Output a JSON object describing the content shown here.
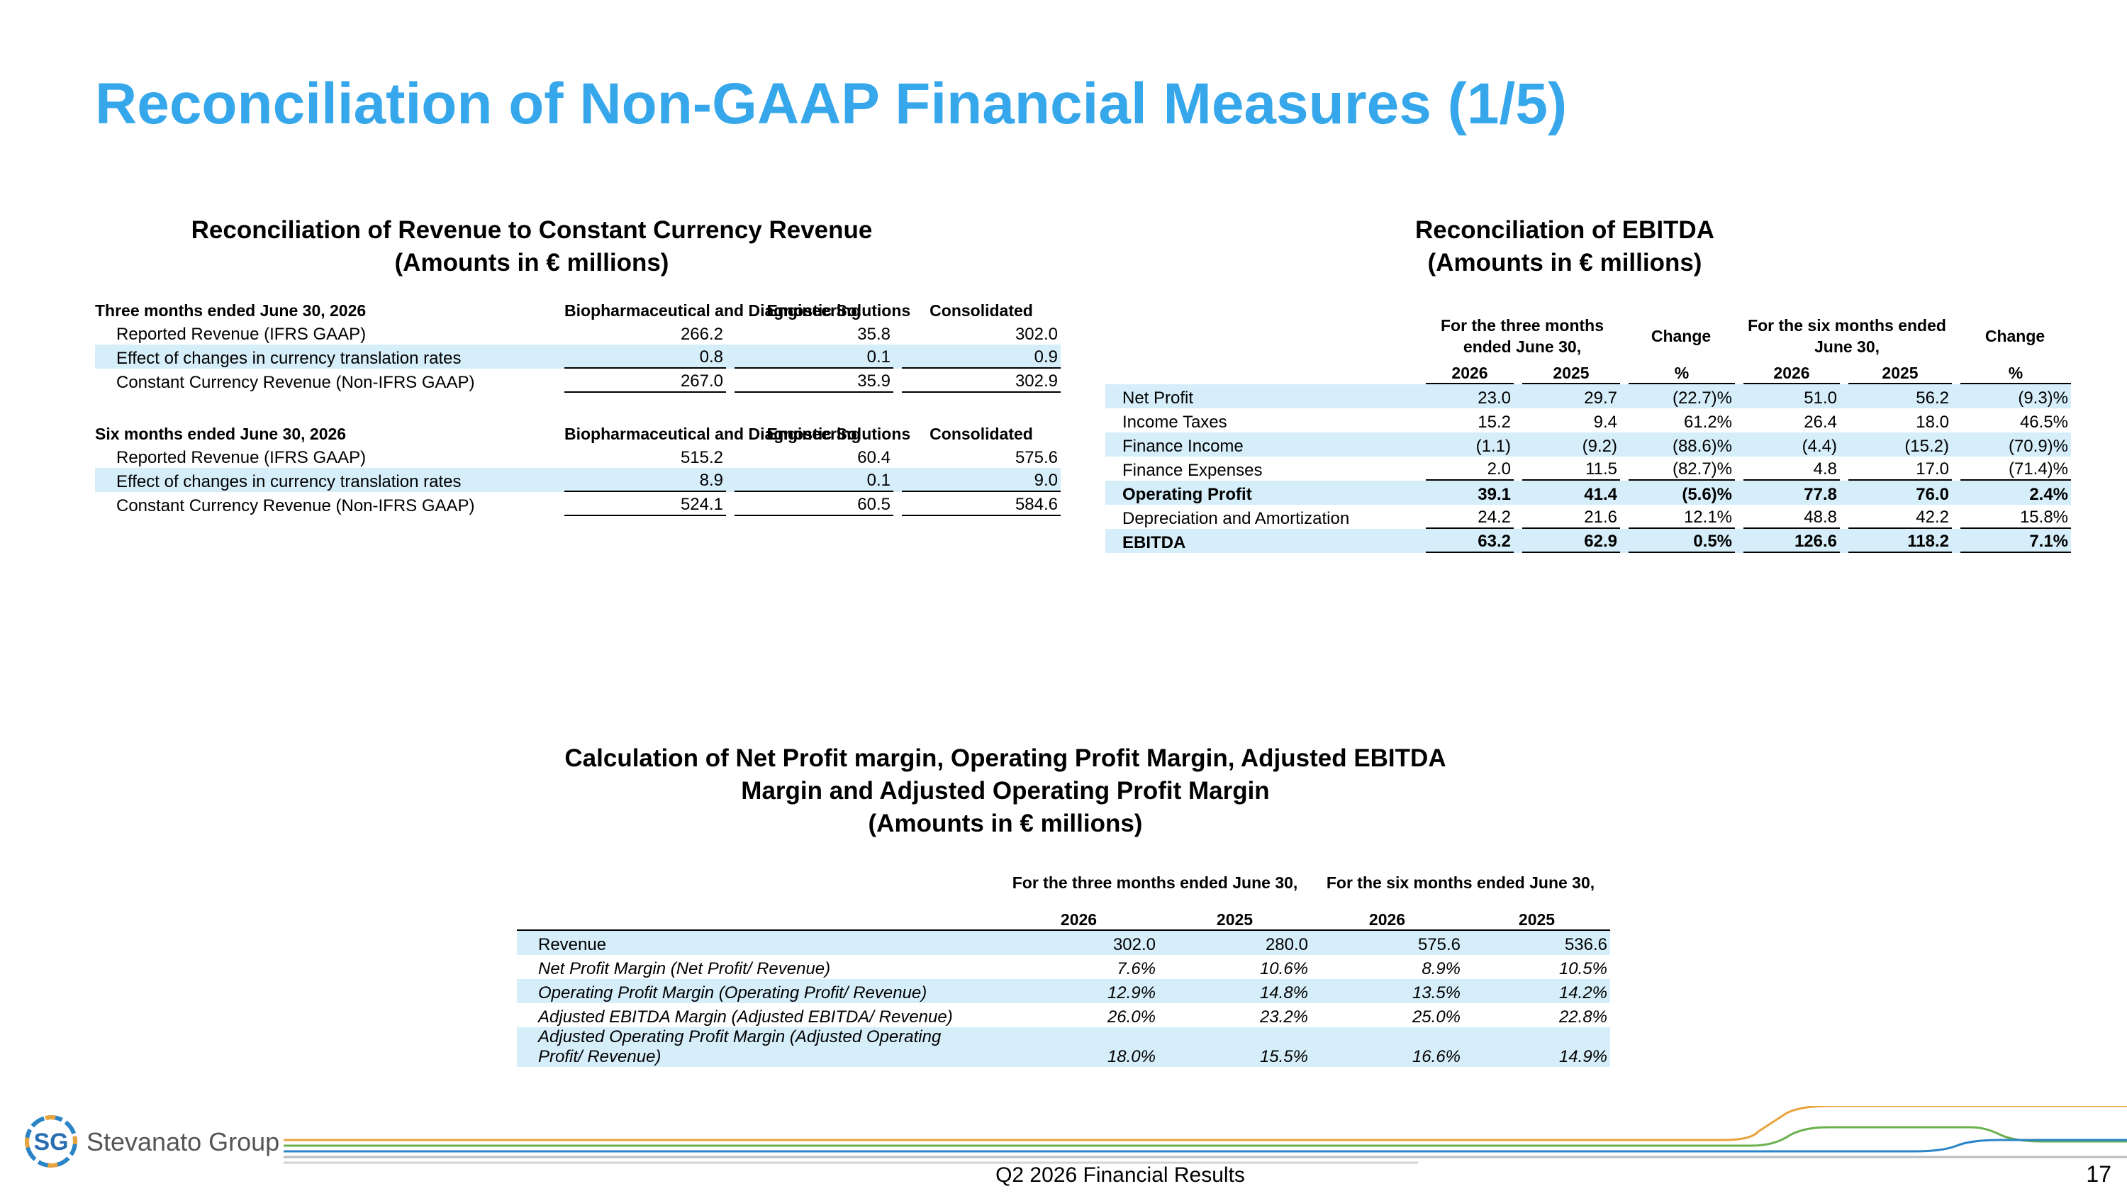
{
  "title": "Reconciliation of Non-GAAP Financial Measures (1/5)",
  "revenue": {
    "title": "Reconciliation of Revenue to Constant Currency Revenue",
    "subtitle": "(Amounts in € millions)",
    "sections": [
      {
        "period": "Three months ended June 30, 2026",
        "columns": [
          "Biopharmaceutical and Diagnostic Solutions",
          "Engineering",
          "Consolidated"
        ],
        "rows": [
          {
            "label": "Reported Revenue (IFRS GAAP)",
            "values": [
              "266.2",
              "35.8",
              "302.0"
            ]
          },
          {
            "label": "Effect of changes in currency translation rates",
            "values": [
              "0.8",
              "0.1",
              "0.9"
            ]
          },
          {
            "label": "Constant Currency Revenue (Non-IFRS GAAP)",
            "values": [
              "267.0",
              "35.9",
              "302.9"
            ]
          }
        ]
      },
      {
        "period": "Six months ended June 30, 2026",
        "columns": [
          "Biopharmaceutical and Diagnostic Solutions",
          "Engineering",
          "Consolidated"
        ],
        "rows": [
          {
            "label": "Reported Revenue (IFRS GAAP)",
            "values": [
              "515.2",
              "60.4",
              "575.6"
            ]
          },
          {
            "label": "Effect of changes in currency translation rates",
            "values": [
              "8.9",
              "0.1",
              "9.0"
            ]
          },
          {
            "label": "Constant Currency Revenue (Non-IFRS GAAP)",
            "values": [
              "524.1",
              "60.5",
              "584.6"
            ]
          }
        ]
      }
    ]
  },
  "ebitda": {
    "title": "Reconciliation of EBITDA",
    "subtitle": "(Amounts in € millions)",
    "column_groups": [
      "For the three months ended June 30,",
      "Change",
      "For the six months ended June 30,",
      "Change"
    ],
    "columns": [
      "2026",
      "2025",
      "%",
      "2026",
      "2025",
      "%"
    ],
    "rows": [
      {
        "label": "Net Profit",
        "values": [
          "23.0",
          "29.7",
          "(22.7)%",
          "51.0",
          "56.2",
          "(9.3)%"
        ]
      },
      {
        "label": "Income Taxes",
        "values": [
          "15.2",
          "9.4",
          "61.2%",
          "26.4",
          "18.0",
          "46.5%"
        ]
      },
      {
        "label": "Finance Income",
        "values": [
          "(1.1)",
          "(9.2)",
          "(88.6)%",
          "(4.4)",
          "(15.2)",
          "(70.9)%"
        ]
      },
      {
        "label": "Finance Expenses",
        "values": [
          "2.0",
          "11.5",
          "(82.7)%",
          "4.8",
          "17.0",
          "(71.4)%"
        ]
      },
      {
        "label": "Operating Profit",
        "values": [
          "39.1",
          "41.4",
          "(5.6)%",
          "77.8",
          "76.0",
          "2.4%"
        ]
      },
      {
        "label": "Depreciation and Amortization",
        "values": [
          "24.2",
          "21.6",
          "12.1%",
          "48.8",
          "42.2",
          "15.8%"
        ]
      },
      {
        "label": "EBITDA",
        "values": [
          "63.2",
          "62.9",
          "0.5%",
          "126.6",
          "118.2",
          "7.1%"
        ]
      }
    ]
  },
  "margins": {
    "title": "Calculation of Net Profit margin, Operating Profit Margin, Adjusted EBITDA Margin and Adjusted Operating Profit Margin",
    "subtitle": "(Amounts in € millions)",
    "column_groups": [
      "For the three months ended June 30,",
      "For the six months ended June 30,"
    ],
    "columns": [
      "2026",
      "2025",
      "2026",
      "2025"
    ],
    "rows": [
      {
        "label": "Revenue",
        "values": [
          "302.0",
          "280.0",
          "575.6",
          "536.6"
        ]
      },
      {
        "label": "Net Profit Margin (Net Profit/ Revenue)",
        "values": [
          "7.6%",
          "10.6%",
          "8.9%",
          "10.5%"
        ]
      },
      {
        "label": "Operating Profit Margin (Operating Profit/ Revenue)",
        "values": [
          "12.9%",
          "14.8%",
          "13.5%",
          "14.2%"
        ]
      },
      {
        "label": "Adjusted EBITDA Margin (Adjusted EBITDA/ Revenue)",
        "values": [
          "26.0%",
          "23.2%",
          "25.0%",
          "22.8%"
        ]
      },
      {
        "label": "Adjusted Operating Profit Margin (Adjusted Operating Profit/ Revenue)",
        "values": [
          "18.0%",
          "15.5%",
          "16.6%",
          "14.9%"
        ]
      }
    ]
  },
  "footer": {
    "logo_mark": "SG",
    "company": "Stevanato Group",
    "text": "Q2 2026 Financial Results",
    "page": "17"
  }
}
